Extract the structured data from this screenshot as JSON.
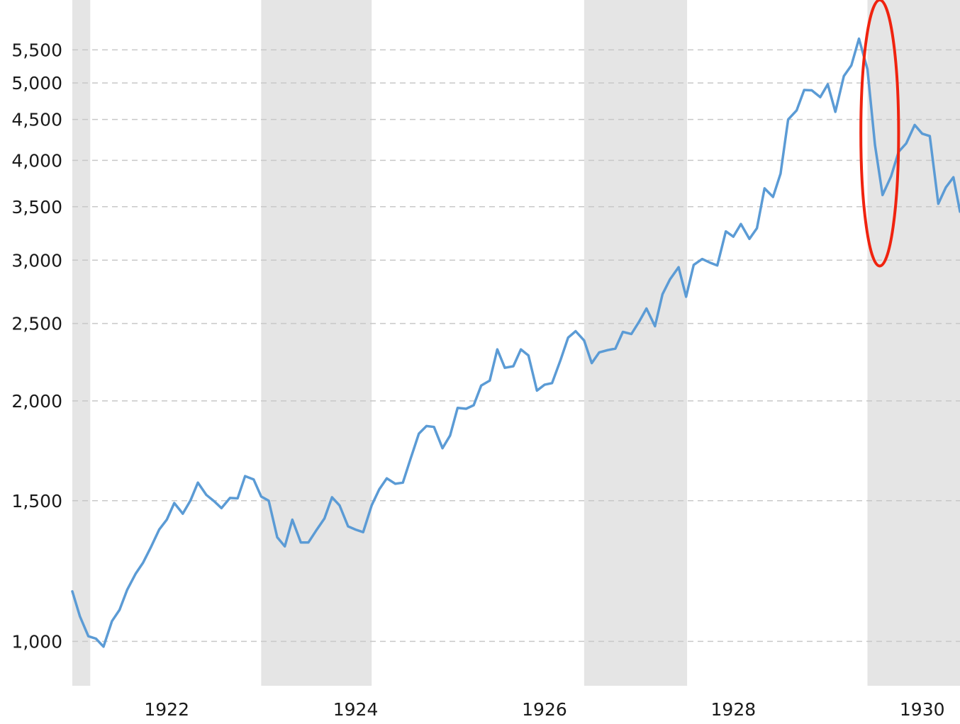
{
  "chart_data": {
    "type": "line",
    "title": "",
    "xlabel": "",
    "ylabel": "",
    "y_scale": "log",
    "ylim": [
      880,
      6350
    ],
    "xlim": [
      1921.0,
      1930.4
    ],
    "grid": "horizontal dashed",
    "y_ticks": [
      1000,
      1500,
      2000,
      2500,
      3000,
      3500,
      4000,
      4500,
      5000,
      5500
    ],
    "y_tick_labels": [
      "1,000",
      "1,500",
      "2,000",
      "2,500",
      "3,000",
      "3,500",
      "4,000",
      "4,500",
      "5,000",
      "5,500"
    ],
    "x_ticks": [
      1922,
      1924,
      1926,
      1928,
      1930
    ],
    "x_tick_labels": [
      "1922",
      "1924",
      "1926",
      "1928",
      "1930"
    ],
    "shaded_periods": [
      [
        1921.0,
        1921.19
      ],
      [
        1923.0,
        1924.17
      ],
      [
        1926.42,
        1927.51
      ],
      [
        1929.42,
        1930.4
      ]
    ],
    "shade_color": "#e5e5e5",
    "line_color": "#5b9bd5",
    "highlight_color": "#f0230f",
    "highlight_region": {
      "x_range": [
        1929.35,
        1929.75
      ],
      "y_range": [
        2950,
        6350
      ]
    },
    "series": [
      {
        "x": [
          1921.0,
          1921.08,
          1921.17,
          1921.25,
          1921.33,
          1921.42,
          1921.5,
          1921.58,
          1921.67,
          1921.75,
          1921.83,
          1921.92,
          1922.0,
          1922.08,
          1922.17,
          1922.25,
          1922.33,
          1922.42,
          1922.5,
          1922.58,
          1922.67,
          1922.75,
          1922.83,
          1922.92,
          1923.0,
          1923.08,
          1923.17,
          1923.25,
          1923.33,
          1923.42,
          1923.5,
          1923.58,
          1923.67,
          1923.75,
          1923.83,
          1923.92,
          1924.0,
          1924.08,
          1924.17,
          1924.25,
          1924.33,
          1924.42,
          1924.5,
          1924.58,
          1924.67,
          1924.75,
          1924.83,
          1924.92,
          1925.0,
          1925.08,
          1925.17,
          1925.25,
          1925.33,
          1925.42,
          1925.5,
          1925.58,
          1925.67,
          1925.75,
          1925.83,
          1925.92,
          1926.0,
          1926.08,
          1926.17,
          1926.25,
          1926.33,
          1926.42,
          1926.5,
          1926.58,
          1926.67,
          1926.75,
          1926.83,
          1926.92,
          1927.0,
          1927.08,
          1927.17,
          1927.25,
          1927.33,
          1927.42,
          1927.5,
          1927.58,
          1927.67,
          1927.75,
          1927.83,
          1927.92,
          1928.0,
          1928.08,
          1928.17,
          1928.25,
          1928.33,
          1928.42,
          1928.5,
          1928.58,
          1928.67,
          1928.75,
          1928.83,
          1928.92,
          1929.0,
          1929.08,
          1929.17,
          1929.25,
          1929.33,
          1929.42,
          1929.5,
          1929.58,
          1929.67,
          1929.75,
          1929.83,
          1929.92,
          1930.0,
          1930.08,
          1930.17,
          1930.25,
          1930.33,
          1930.4
        ],
        "y": [
          1155,
          1075,
          1015,
          1008,
          985,
          1060,
          1095,
          1160,
          1215,
          1255,
          1310,
          1380,
          1420,
          1490,
          1445,
          1500,
          1580,
          1525,
          1498,
          1468,
          1512,
          1510,
          1610,
          1595,
          1518,
          1500,
          1350,
          1315,
          1420,
          1330,
          1330,
          1375,
          1425,
          1515,
          1480,
          1393,
          1380,
          1370,
          1480,
          1550,
          1600,
          1575,
          1580,
          1690,
          1820,
          1860,
          1855,
          1745,
          1810,
          1960,
          1955,
          1975,
          2090,
          2120,
          2320,
          2200,
          2210,
          2320,
          2280,
          2060,
          2095,
          2105,
          2250,
          2400,
          2445,
          2380,
          2230,
          2300,
          2315,
          2325,
          2440,
          2425,
          2510,
          2610,
          2480,
          2720,
          2840,
          2940,
          2700,
          2960,
          3010,
          2980,
          2955,
          3260,
          3210,
          3330,
          3190,
          3290,
          3690,
          3600,
          3850,
          4500,
          4620,
          4900,
          4895,
          4800,
          4980,
          4600,
          5100,
          5260,
          5680,
          5200,
          4180,
          3620,
          3820,
          4100,
          4200,
          4430,
          4320,
          4290,
          3530,
          3700,
          3810,
          3450
        ]
      }
    ]
  }
}
